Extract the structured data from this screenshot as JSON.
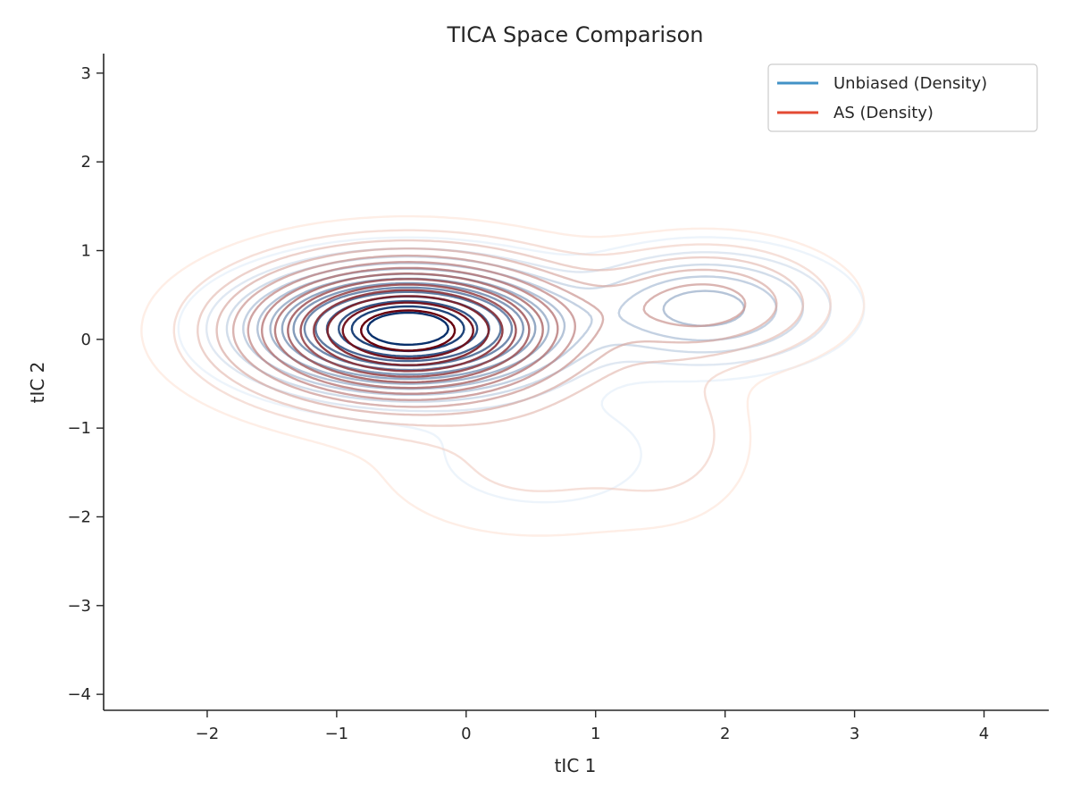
{
  "chart_data": {
    "type": "contour",
    "title": "TICA Space Comparison",
    "xlabel": "tIC 1",
    "ylabel": "tIC 2",
    "xlim": [
      -2.8,
      4.5
    ],
    "ylim": [
      -4.18,
      3.22
    ],
    "x_ticks": [
      -2,
      -1,
      0,
      1,
      2,
      3,
      4
    ],
    "y_ticks": [
      -4,
      -3,
      -2,
      -1,
      0,
      1,
      2,
      3
    ],
    "x_tick_labels": [
      "−2",
      "−1",
      "0",
      "1",
      "2",
      "3",
      "4"
    ],
    "y_tick_labels": [
      "−4",
      "−3",
      "−2",
      "−1",
      "0",
      "1",
      "2",
      "3"
    ],
    "grid": false,
    "legend_position": "top-right",
    "legend": [
      {
        "label": "Unbiased (Density)",
        "color": "#4292c6"
      },
      {
        "label": "AS (Density)",
        "color": "#e34a33"
      }
    ],
    "series": [
      {
        "name": "Unbiased (Density)",
        "colormap": "Blues",
        "color_light": "#deebf7",
        "color_dark": "#08306b",
        "levels": 14,
        "components": [
          {
            "mx": -0.45,
            "my": 0.12,
            "sx": 0.62,
            "sy": 0.36,
            "w": 1.0
          },
          {
            "mx": 1.85,
            "my": 0.35,
            "sx": 0.55,
            "sy": 0.36,
            "w": 0.2
          },
          {
            "mx": 0.6,
            "my": -1.3,
            "sx": 0.7,
            "sy": 0.5,
            "w": 0.03
          }
        ]
      },
      {
        "name": "AS (Density)",
        "colormap": "Reds",
        "color_light": "#fee0d2",
        "color_dark": "#67000d",
        "levels": 14,
        "components": [
          {
            "mx": -0.45,
            "my": 0.1,
            "sx": 0.72,
            "sy": 0.45,
            "w": 1.0
          },
          {
            "mx": 1.85,
            "my": 0.4,
            "sx": 0.55,
            "sy": 0.38,
            "w": 0.2
          },
          {
            "mx": 0.55,
            "my": -1.4,
            "sx": 0.8,
            "sy": 0.55,
            "w": 0.05
          },
          {
            "mx": 1.6,
            "my": -1.0,
            "sx": 0.35,
            "sy": 0.55,
            "w": 0.05
          }
        ]
      }
    ]
  }
}
